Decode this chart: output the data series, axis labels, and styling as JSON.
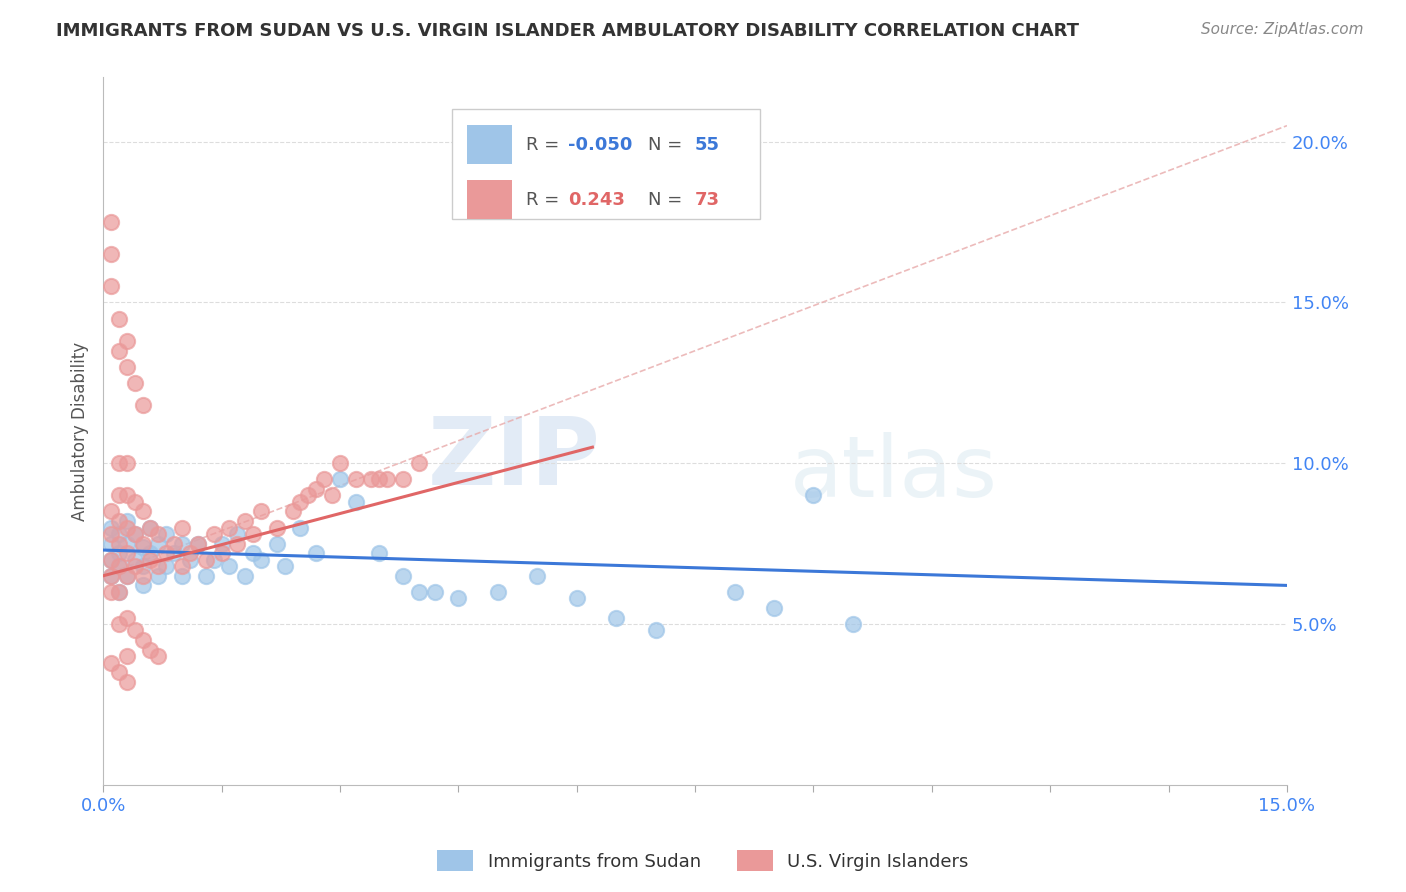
{
  "title": "IMMIGRANTS FROM SUDAN VS U.S. VIRGIN ISLANDER AMBULATORY DISABILITY CORRELATION CHART",
  "source": "Source: ZipAtlas.com",
  "ylabel": "Ambulatory Disability",
  "xlim": [
    0.0,
    0.15
  ],
  "ylim": [
    0.0,
    0.22
  ],
  "blue_color": "#9fc5e8",
  "pink_color": "#ea9999",
  "blue_line_color": "#3c78d8",
  "pink_line_color": "#e06666",
  "ref_line_color": "#e8a0a0",
  "title_color": "#333333",
  "source_color": "#888888",
  "axis_label_color": "#555555",
  "tick_label_color": "#4285f4",
  "legend_r_blue": "-0.050",
  "legend_n_blue": "55",
  "legend_r_pink": "0.243",
  "legend_n_pink": "73",
  "watermark_zip": "ZIP",
  "watermark_atlas": "atlas",
  "background_color": "#ffffff",
  "grid_color": "#dddddd",
  "blue_scatter_x": [
    0.001,
    0.001,
    0.001,
    0.001,
    0.002,
    0.002,
    0.002,
    0.002,
    0.003,
    0.003,
    0.003,
    0.004,
    0.004,
    0.005,
    0.005,
    0.005,
    0.006,
    0.006,
    0.007,
    0.007,
    0.008,
    0.008,
    0.009,
    0.01,
    0.01,
    0.011,
    0.012,
    0.013,
    0.014,
    0.015,
    0.016,
    0.017,
    0.018,
    0.019,
    0.02,
    0.022,
    0.023,
    0.025,
    0.027,
    0.03,
    0.032,
    0.035,
    0.038,
    0.04,
    0.042,
    0.045,
    0.05,
    0.055,
    0.06,
    0.065,
    0.07,
    0.08,
    0.085,
    0.09,
    0.095
  ],
  "blue_scatter_y": [
    0.065,
    0.07,
    0.075,
    0.08,
    0.06,
    0.068,
    0.072,
    0.078,
    0.065,
    0.075,
    0.082,
    0.07,
    0.078,
    0.062,
    0.068,
    0.074,
    0.072,
    0.08,
    0.065,
    0.075,
    0.068,
    0.078,
    0.072,
    0.065,
    0.075,
    0.07,
    0.075,
    0.065,
    0.07,
    0.075,
    0.068,
    0.078,
    0.065,
    0.072,
    0.07,
    0.075,
    0.068,
    0.08,
    0.072,
    0.095,
    0.088,
    0.072,
    0.065,
    0.06,
    0.06,
    0.058,
    0.06,
    0.065,
    0.058,
    0.052,
    0.048,
    0.06,
    0.055,
    0.09,
    0.05
  ],
  "pink_scatter_x": [
    0.001,
    0.001,
    0.001,
    0.001,
    0.001,
    0.002,
    0.002,
    0.002,
    0.002,
    0.002,
    0.002,
    0.003,
    0.003,
    0.003,
    0.003,
    0.003,
    0.004,
    0.004,
    0.004,
    0.005,
    0.005,
    0.005,
    0.006,
    0.006,
    0.007,
    0.007,
    0.008,
    0.009,
    0.01,
    0.01,
    0.011,
    0.012,
    0.013,
    0.014,
    0.015,
    0.016,
    0.017,
    0.018,
    0.019,
    0.02,
    0.022,
    0.024,
    0.025,
    0.026,
    0.027,
    0.028,
    0.029,
    0.03,
    0.032,
    0.034,
    0.035,
    0.036,
    0.038,
    0.04,
    0.002,
    0.003,
    0.004,
    0.005,
    0.006,
    0.007,
    0.001,
    0.001,
    0.002,
    0.003,
    0.001,
    0.002,
    0.003,
    0.004,
    0.005,
    0.003,
    0.001,
    0.002,
    0.003
  ],
  "pink_scatter_y": [
    0.06,
    0.065,
    0.07,
    0.078,
    0.085,
    0.06,
    0.068,
    0.075,
    0.082,
    0.09,
    0.1,
    0.065,
    0.072,
    0.08,
    0.09,
    0.1,
    0.068,
    0.078,
    0.088,
    0.065,
    0.075,
    0.085,
    0.07,
    0.08,
    0.068,
    0.078,
    0.072,
    0.075,
    0.068,
    0.08,
    0.072,
    0.075,
    0.07,
    0.078,
    0.072,
    0.08,
    0.075,
    0.082,
    0.078,
    0.085,
    0.08,
    0.085,
    0.088,
    0.09,
    0.092,
    0.095,
    0.09,
    0.1,
    0.095,
    0.095,
    0.095,
    0.095,
    0.095,
    0.1,
    0.05,
    0.052,
    0.048,
    0.045,
    0.042,
    0.04,
    0.155,
    0.165,
    0.145,
    0.138,
    0.175,
    0.135,
    0.13,
    0.125,
    0.118,
    0.04,
    0.038,
    0.035,
    0.032
  ]
}
